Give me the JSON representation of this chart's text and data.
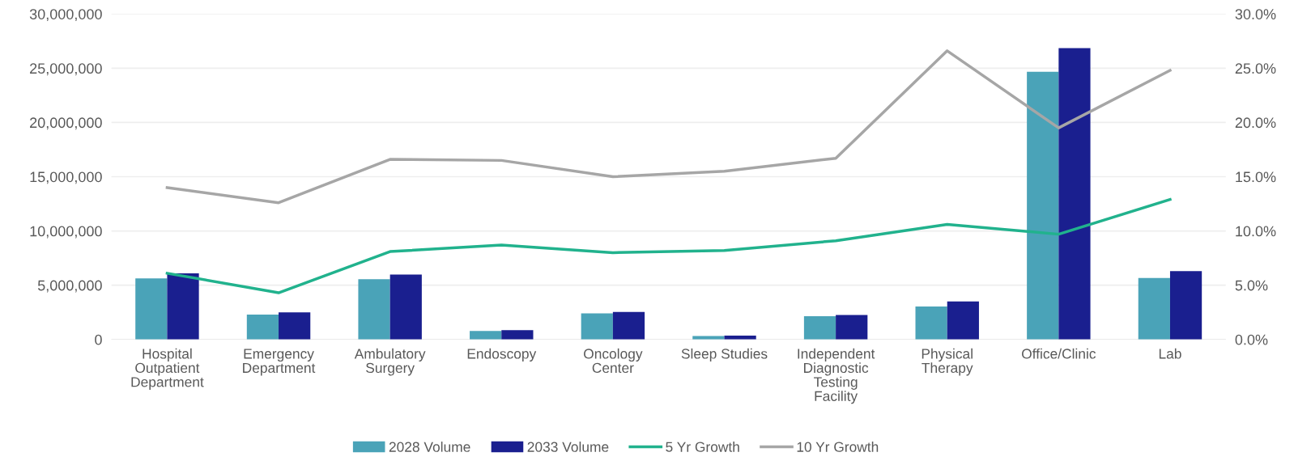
{
  "chart_data": {
    "type": "bar",
    "categories": [
      "Hospital\nOutpatient\nDepartment",
      "Emergency\nDepartment",
      "Ambulatory\nSurgery",
      "Endoscopy",
      "Oncology\nCenter",
      "Sleep Studies",
      "Independent\nDiagnostic\nTesting\nFacility",
      "Physical\nTherapy",
      "Office/Clinic",
      "Lab"
    ],
    "series": [
      {
        "name": "2028 Volume",
        "color": "#4aa3b8",
        "values": [
          5630000,
          2290000,
          5560000,
          780000,
          2410000,
          310000,
          2140000,
          3030000,
          24670000,
          5670000
        ]
      },
      {
        "name": "2033 Volume",
        "color": "#1a1f8f",
        "values": [
          6100000,
          2490000,
          5980000,
          850000,
          2530000,
          350000,
          2250000,
          3500000,
          26850000,
          6290000
        ]
      },
      {
        "name": "5 Yr Growth",
        "type": "line",
        "axis": "y2",
        "color": "#21b28d",
        "values": [
          6.1,
          4.3,
          8.1,
          8.7,
          8.0,
          8.2,
          9.1,
          10.6,
          9.7,
          12.9
        ]
      },
      {
        "name": "10 Yr Growth",
        "type": "line",
        "axis": "y2",
        "color": "#a6a6a6",
        "values": [
          14.0,
          12.6,
          16.6,
          16.5,
          15.0,
          15.5,
          16.7,
          26.6,
          19.5,
          24.8
        ]
      }
    ],
    "ylim": [
      0,
      30000000
    ],
    "yticks": [
      {
        "value": 0,
        "label": "0"
      },
      {
        "value": 5000000,
        "label": "5,000,000"
      },
      {
        "value": 10000000,
        "label": "10,000,000"
      },
      {
        "value": 15000000,
        "label": "15,000,000"
      },
      {
        "value": 20000000,
        "label": "20,000,000"
      },
      {
        "value": 25000000,
        "label": "25,000,000"
      },
      {
        "value": 30000000,
        "label": "30,000,000"
      }
    ],
    "y2lim": [
      0,
      30
    ],
    "y2ticks": [
      {
        "value": 0,
        "label": "0.0%"
      },
      {
        "value": 5,
        "label": "5.0%"
      },
      {
        "value": 10,
        "label": "10.0%"
      },
      {
        "value": 15,
        "label": "15.0%"
      },
      {
        "value": 20,
        "label": "20.0%"
      },
      {
        "value": 25,
        "label": "25.0%"
      },
      {
        "value": 30,
        "label": "30.0%"
      }
    ],
    "grid": "y",
    "legend": "bottom",
    "marker": "none",
    "line_style": "solid"
  }
}
